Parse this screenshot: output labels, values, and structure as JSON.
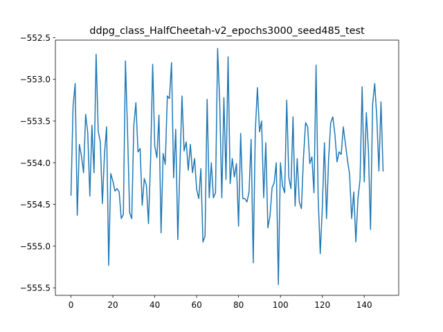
{
  "chart_data": {
    "type": "line",
    "title": "ddpg_class_HalfCheetah-v2_epochs3000_seed485_test",
    "xlabel": "",
    "ylabel": "",
    "xlim": [
      -7.45,
      156.45
    ],
    "ylim": [
      -555.59,
      -552.53
    ],
    "x_ticks": [
      0,
      20,
      40,
      60,
      80,
      100,
      120,
      140
    ],
    "y_ticks": [
      -552.5,
      -553.0,
      -553.5,
      -554.0,
      -554.5,
      -555.0,
      -555.5
    ],
    "x_tick_labels": [
      "0",
      "20",
      "40",
      "60",
      "80",
      "100",
      "120",
      "140"
    ],
    "y_tick_labels": [
      "−552.5",
      "−553.0",
      "−553.5",
      "−554.0",
      "−554.5",
      "−555.0",
      "−555.5"
    ],
    "grid": false,
    "line_color": "#1f77b4",
    "series": [
      {
        "x_start": 0,
        "x_step": 1,
        "values": [
          -554.39,
          -553.32,
          -553.05,
          -554.63,
          -553.78,
          -553.92,
          -554.12,
          -553.42,
          -553.64,
          -554.4,
          -553.55,
          -554.12,
          -552.7,
          -553.62,
          -553.75,
          -554.49,
          -553.89,
          -553.57,
          -555.23,
          -554.13,
          -554.22,
          -554.34,
          -554.31,
          -554.35,
          -554.67,
          -554.62,
          -552.78,
          -553.62,
          -554.6,
          -554.67,
          -553.55,
          -553.28,
          -553.87,
          -553.83,
          -554.51,
          -554.19,
          -554.27,
          -554.73,
          -553.98,
          -552.82,
          -553.8,
          -553.94,
          -553.43,
          -554.84,
          -553.89,
          -554.02,
          -553.2,
          -553.23,
          -552.8,
          -554.18,
          -553.6,
          -554.92,
          -554.05,
          -553.2,
          -553.86,
          -553.75,
          -554.09,
          -553.78,
          -554.12,
          -553.95,
          -554.32,
          -554.43,
          -554.07,
          -554.95,
          -554.88,
          -553.24,
          -554.42,
          -554.0,
          -554.42,
          -554.36,
          -552.63,
          -553.27,
          -554.42,
          -553.22,
          -554.2,
          -552.73,
          -554.25,
          -553.95,
          -554.17,
          -554.01,
          -554.76,
          -553.65,
          -554.43,
          -554.43,
          -554.47,
          -554.35,
          -553.72,
          -555.2,
          -553.62,
          -553.1,
          -553.63,
          -553.5,
          -554.42,
          -553.76,
          -554.78,
          -554.64,
          -554.3,
          -554.24,
          -554.0,
          -555.46,
          -554.0,
          -554.28,
          -554.36,
          -553.25,
          -554.18,
          -554.31,
          -553.45,
          -554.52,
          -553.95,
          -554.47,
          -554.55,
          -553.93,
          -553.52,
          -553.57,
          -554.01,
          -553.93,
          -554.36,
          -552.83,
          -554.41,
          -555.09,
          -554.53,
          -553.76,
          -554.67,
          -553.95,
          -553.52,
          -553.45,
          -553.66,
          -553.99,
          -553.87,
          -553.9,
          -553.57,
          -553.77,
          -553.97,
          -554.14,
          -554.67,
          -554.35,
          -554.95,
          -554.43,
          -554.2,
          -553.09,
          -554.23,
          -553.4,
          -553.85,
          -554.8,
          -553.3,
          -553.05,
          -553.46,
          -554.1,
          -553.27,
          -554.1
        ]
      }
    ]
  }
}
